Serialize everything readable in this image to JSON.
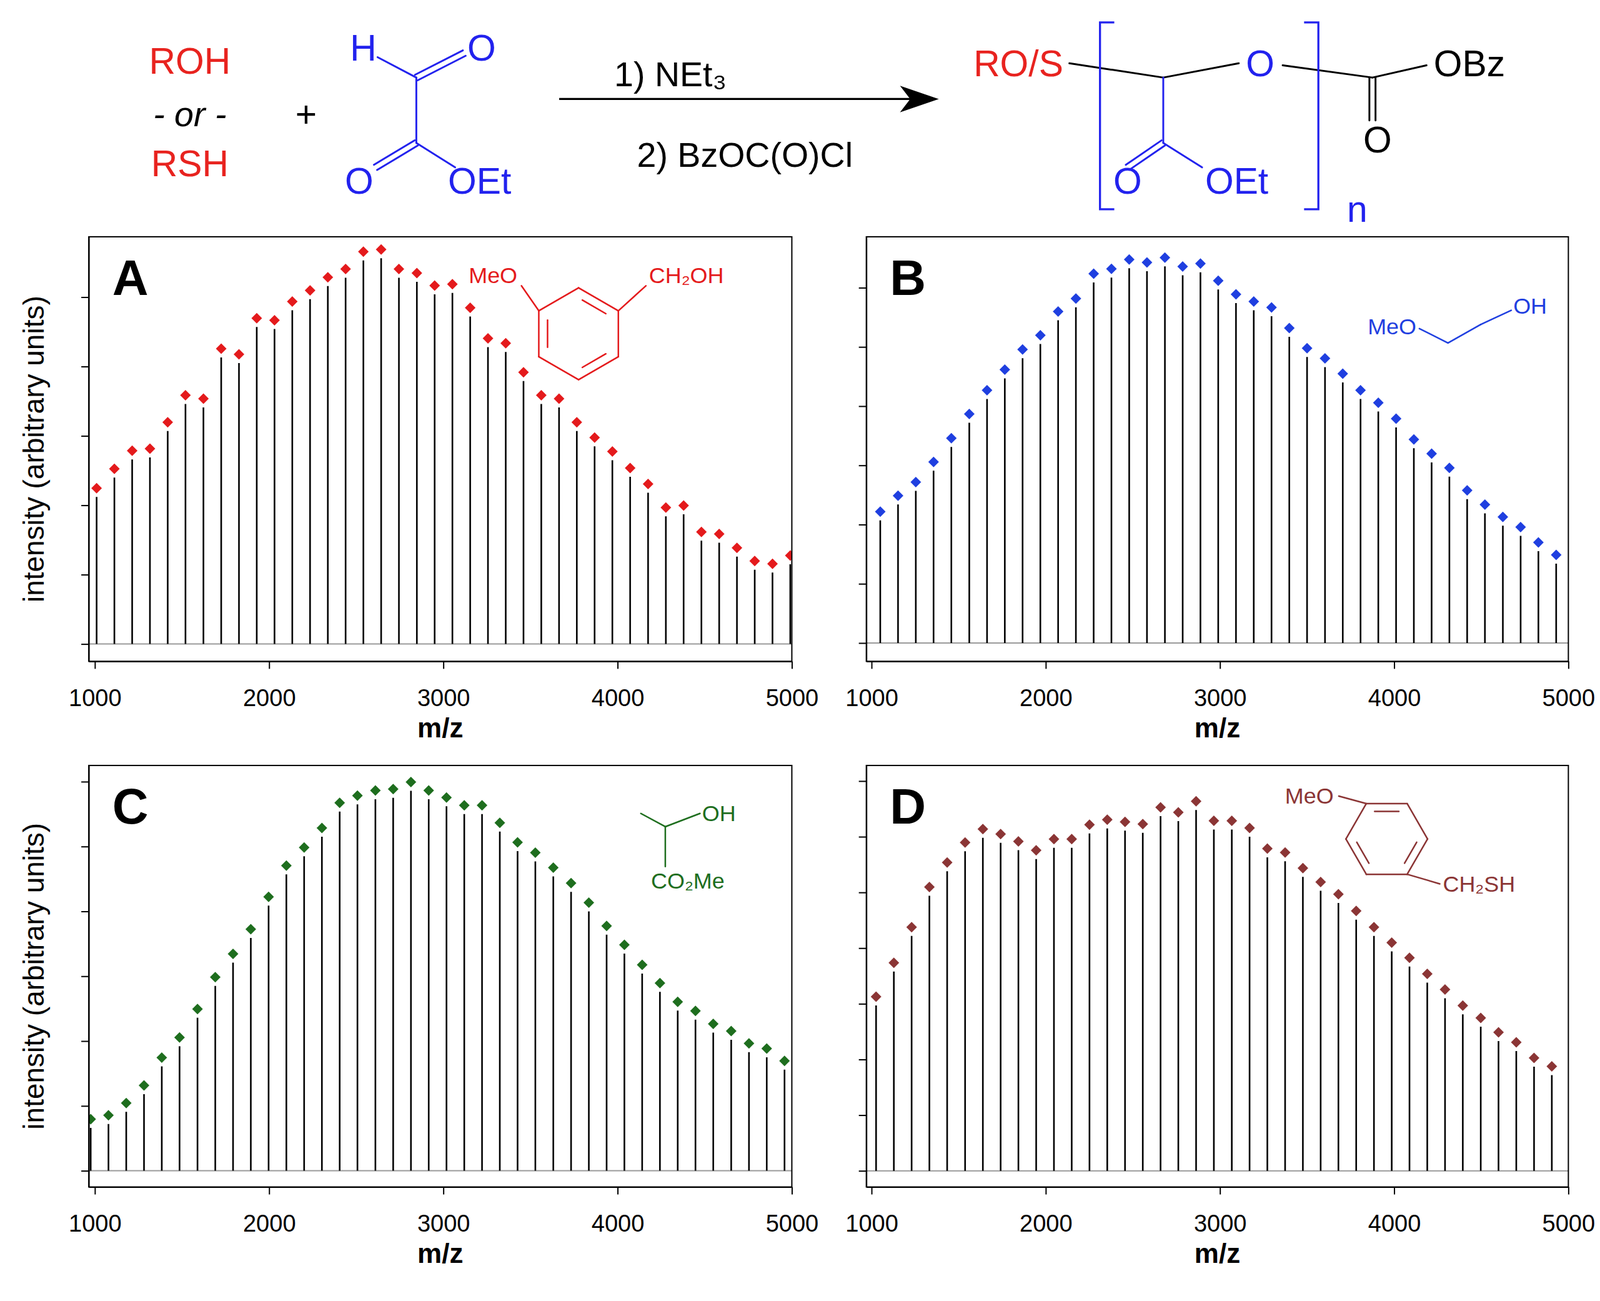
{
  "scheme": {
    "reactants": [
      "ROH",
      "- or -",
      "RSH"
    ],
    "plus": "+",
    "glyoxylate": {
      "h": "H",
      "o_aldehyde": "O",
      "o_ester": "O",
      "oet": "OEt"
    },
    "conditions": [
      "1) NEt₃",
      "2) BzOC(O)Cl"
    ],
    "product": {
      "ros": "RO/S",
      "o_chain": "O",
      "o_ester": "O",
      "oet": "OEt",
      "n": "n",
      "obz": "OBz",
      "o_carbonyl": "O"
    }
  },
  "chart_data": [
    {
      "type": "bar",
      "title": "A",
      "x_label": "m/z",
      "y_label": "intensity (arbitrary units)",
      "annotations": [
        "MeO",
        "CH₂OH"
      ],
      "x": [
        1010,
        1112,
        1214,
        1316,
        1418,
        1520,
        1623,
        1725,
        1827,
        1929,
        2031,
        2133,
        2235,
        2337,
        2439,
        2541,
        2643,
        2745,
        2848,
        2950,
        3052,
        3154,
        3256,
        3358,
        3460,
        3562,
        3664,
        3766,
        3868,
        3970,
        4072,
        4175,
        4277,
        4379,
        4481,
        4583,
        4685,
        4787,
        4889,
        4991
      ],
      "series": [
        {
          "color": "#e41a1c",
          "marker": "diamond",
          "values": [
            2.12,
            2.4,
            2.66,
            2.69,
            3.07,
            3.46,
            3.41,
            4.13,
            4.05,
            4.57,
            4.54,
            4.81,
            4.97,
            5.16,
            5.28,
            5.53,
            5.56,
            5.28,
            5.22,
            5.04,
            5.06,
            4.72,
            4.28,
            4.21,
            3.79,
            3.46,
            3.41,
            3.07,
            2.85,
            2.65,
            2.41,
            2.18,
            1.84,
            1.87,
            1.49,
            1.46,
            1.26,
            1.07,
            1.03,
            1.15
          ]
        }
      ],
      "xlim": [
        965,
        5000
      ],
      "ylim": [
        -0.25,
        5.87
      ],
      "xticks": [
        1000,
        2000,
        3000,
        4000,
        5000
      ],
      "yticks": [
        0,
        1,
        2,
        3,
        4,
        5
      ],
      "tick_labels": "x"
    },
    {
      "type": "bar",
      "title": "B",
      "x_label": "m/z",
      "annotations": [
        "MeO",
        "OH"
      ],
      "x": [
        1050,
        1152,
        1254,
        1356,
        1458,
        1561,
        1663,
        1765,
        1867,
        1969,
        2071,
        2173,
        2275,
        2377,
        2479,
        2581,
        2684,
        2786,
        2888,
        2990,
        3092,
        3194,
        3296,
        3398,
        3500,
        3603,
        3705,
        3807,
        3909,
        4011,
        4113,
        4215,
        4317,
        4419,
        4521,
        4624,
        4726,
        4828,
        4930
      ],
      "series": [
        {
          "color": "#1f3fe0",
          "marker": "diamond",
          "values": [
            2.07,
            2.34,
            2.57,
            2.91,
            3.31,
            3.72,
            4.12,
            4.47,
            4.81,
            5.05,
            5.45,
            5.67,
            6.09,
            6.17,
            6.33,
            6.28,
            6.36,
            6.21,
            6.26,
            5.97,
            5.74,
            5.62,
            5.52,
            5.17,
            4.83,
            4.66,
            4.4,
            4.12,
            3.91,
            3.64,
            3.29,
            3.05,
            2.81,
            2.43,
            2.19,
            1.98,
            1.81,
            1.55,
            1.34
          ]
        }
      ],
      "xlim": [
        970,
        5000
      ],
      "ylim": [
        -0.31,
        6.86
      ],
      "xticks": [
        1000,
        2000,
        3000,
        4000,
        5000
      ],
      "yticks": [
        0,
        1,
        2,
        3,
        4,
        5,
        6
      ],
      "tick_labels": "x"
    },
    {
      "type": "bar",
      "title": "C",
      "x_label": "m/z",
      "y_label": "intensity (arbitrary units)",
      "annotations": [
        "OH",
        "CO₂Me"
      ],
      "x": [
        976,
        1078,
        1180,
        1282,
        1384,
        1486,
        1589,
        1691,
        1793,
        1895,
        1997,
        2099,
        2201,
        2303,
        2405,
        2507,
        2610,
        2712,
        2814,
        2916,
        3018,
        3120,
        3222,
        3324,
        3426,
        3528,
        3631,
        3733,
        3835,
        3937,
        4039,
        4141,
        4243,
        4345,
        4447,
        4549,
        4652,
        4754,
        4856,
        4958
      ],
      "series": [
        {
          "color": "#1e6e1e",
          "marker": "diamond",
          "values": [
            0.66,
            0.72,
            0.91,
            1.18,
            1.61,
            1.92,
            2.36,
            2.85,
            3.21,
            3.59,
            4.09,
            4.57,
            4.85,
            5.15,
            5.54,
            5.65,
            5.73,
            5.75,
            5.86,
            5.73,
            5.62,
            5.5,
            5.5,
            5.23,
            4.93,
            4.77,
            4.54,
            4.3,
            4.0,
            3.64,
            3.35,
            3.04,
            2.76,
            2.47,
            2.33,
            2.13,
            2.02,
            1.83,
            1.75,
            1.56
          ]
        }
      ],
      "xlim": [
        965,
        5000
      ],
      "ylim": [
        -0.25,
        6.25
      ],
      "xticks": [
        1000,
        2000,
        3000,
        4000,
        5000
      ],
      "yticks": [
        0,
        1,
        2,
        3,
        4,
        5,
        6
      ],
      "tick_labels": "x"
    },
    {
      "type": "bar",
      "title": "D",
      "x_label": "m/z",
      "annotations": [
        "MeO",
        "CH₂SH"
      ],
      "x": [
        1026,
        1128,
        1230,
        1332,
        1434,
        1537,
        1639,
        1741,
        1843,
        1945,
        2047,
        2149,
        2251,
        2353,
        2455,
        2557,
        2659,
        2761,
        2863,
        2965,
        3068,
        3170,
        3272,
        3374,
        3476,
        3578,
        3680,
        3782,
        3884,
        3986,
        4088,
        4190,
        4292,
        4394,
        4497,
        4599,
        4701,
        4803,
        4905
      ],
      "series": [
        {
          "color": "#8b3535",
          "marker": "diamond",
          "values": [
            2.97,
            3.58,
            4.22,
            4.94,
            5.38,
            5.74,
            5.98,
            5.89,
            5.76,
            5.6,
            5.8,
            5.8,
            6.06,
            6.15,
            6.11,
            6.07,
            6.37,
            6.28,
            6.48,
            6.13,
            6.13,
            6.0,
            5.63,
            5.56,
            5.28,
            5.03,
            4.81,
            4.51,
            4.22,
            3.94,
            3.67,
            3.38,
            3.1,
            2.81,
            2.59,
            2.33,
            2.15,
            1.87,
            1.72
          ]
        }
      ],
      "xlim": [
        970,
        5000
      ],
      "ylim": [
        -0.29,
        7.28
      ],
      "xticks": [
        1000,
        2000,
        3000,
        4000,
        5000
      ],
      "yticks": [
        0,
        1,
        2,
        3,
        4,
        5,
        6,
        7
      ],
      "tick_labels": "x"
    }
  ]
}
